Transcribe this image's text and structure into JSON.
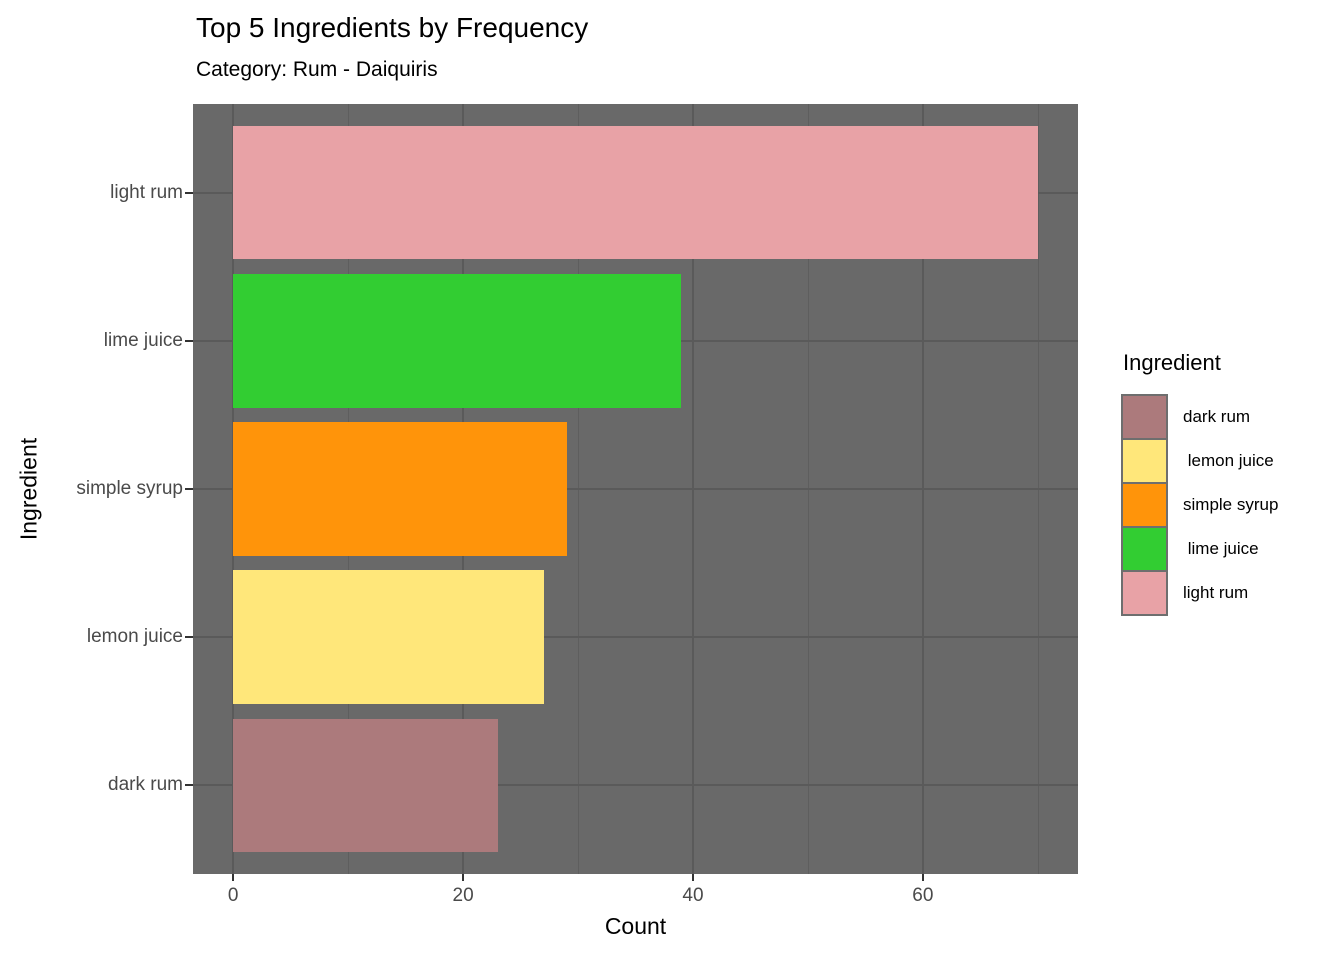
{
  "title": "Top 5 Ingredients by Frequency",
  "subtitle": "Category: Rum - Daiquiris",
  "chart_data": {
    "type": "bar",
    "orientation": "horizontal",
    "title": "Top 5 Ingredients by Frequency",
    "subtitle": "Category: Rum - Daiquiris",
    "xlabel": "Count",
    "ylabel": "Ingredient",
    "categories": [
      "light rum",
      "lime juice",
      "simple syrup",
      "lemon juice",
      "dark rum"
    ],
    "values": [
      70,
      39,
      29,
      27,
      23
    ],
    "colors": [
      "#E8A2A6",
      "#32CD32",
      "#FF940A",
      "#FFE77A",
      "#AC7A7C"
    ],
    "xlim": [
      -3.5,
      73.5
    ],
    "x_major_ticks": [
      0,
      20,
      40,
      60
    ],
    "x_minor_gridlines": [
      10,
      30,
      50,
      70
    ],
    "band": {
      "padding_outer": 0.6,
      "bar_width": 0.9,
      "total_units": 5.2
    },
    "grid": true,
    "legend_position": "right",
    "legend": {
      "title": "Ingredient",
      "entries": [
        {
          "label": "dark rum",
          "color": "#AC7A7C"
        },
        {
          "label": " lemon juice",
          "color": "#FFE77A"
        },
        {
          "label": "simple syrup",
          "color": "#FF940A"
        },
        {
          "label": " lime juice",
          "color": "#32CD32"
        },
        {
          "label": "light rum",
          "color": "#E8A2A6"
        }
      ]
    },
    "theme": {
      "panel_background": "#696969",
      "grid_major_color": "#5A5A5A",
      "grid_minor_color": "#5E5E5E",
      "tick_label_color": "#4A4A4A",
      "tick_mark_color": "#333333",
      "text_color": "#000000",
      "figure_background": "#FFFFFF"
    }
  }
}
